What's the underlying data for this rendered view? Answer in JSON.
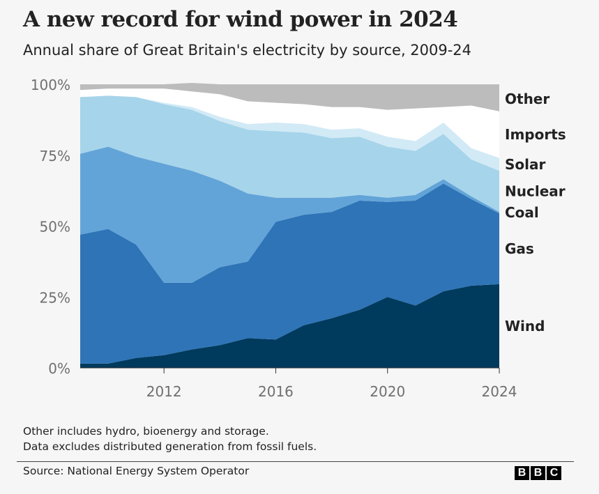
{
  "title": "A new record for wind power in 2024",
  "subtitle": "Annual share of Great Britain's electricity by source, 2009-24",
  "notes": [
    "Other includes hydro, bioenergy and storage.",
    "Data excludes distributed generation from fossil fuels."
  ],
  "source": "Source: National Energy System Operator",
  "logo": [
    "B",
    "B",
    "C"
  ],
  "chart_data": {
    "type": "area",
    "stacked": true,
    "x": [
      2009,
      2010,
      2011,
      2012,
      2013,
      2014,
      2015,
      2016,
      2017,
      2018,
      2019,
      2020,
      2021,
      2022,
      2023,
      2024
    ],
    "xticks": [
      2012,
      2016,
      2020,
      2024
    ],
    "xlim": [
      2009,
      2024
    ],
    "ylim": [
      0,
      100
    ],
    "yticks": [
      {
        "value": 0,
        "label": "0%"
      },
      {
        "value": 25,
        "label": "25%"
      },
      {
        "value": 50,
        "label": "50%"
      },
      {
        "value": 75,
        "label": "75%"
      },
      {
        "value": 100,
        "label": "100%"
      }
    ],
    "grid": true,
    "legend": "direct labels at right",
    "series": [
      {
        "name": "Wind",
        "color": "#003a5d",
        "values": [
          1.5,
          1.5,
          3.5,
          4.5,
          6.5,
          8,
          10.5,
          10,
          15,
          17.5,
          20.5,
          25,
          22,
          27,
          29,
          29.5
        ]
      },
      {
        "name": "Gas",
        "color": "#2e74b7",
        "values": [
          45.5,
          47.5,
          40,
          25.5,
          23.5,
          27.5,
          27,
          41.5,
          39,
          37.5,
          38.5,
          33.5,
          37,
          38,
          30.5,
          25
        ]
      },
      {
        "name": "Coal",
        "color": "#62a4d8",
        "values": [
          28.5,
          29,
          31,
          42,
          39.5,
          30.5,
          24,
          8.5,
          6,
          5,
          2,
          1.5,
          2,
          1.5,
          1,
          0.5
        ]
      },
      {
        "name": "Nuclear",
        "color": "#a6d4ea",
        "values": [
          20,
          18,
          21,
          21,
          21.5,
          21,
          22.5,
          23.5,
          23,
          21,
          20.5,
          18,
          15.5,
          16,
          13,
          14.5
        ]
      },
      {
        "name": "Solar",
        "color": "#d2eaf6",
        "values": [
          0,
          0,
          0,
          0.5,
          1,
          1.5,
          2,
          3,
          3,
          3,
          3,
          3.5,
          3.5,
          4,
          4,
          4.5
        ]
      },
      {
        "name": "Imports",
        "color": "#ffffff",
        "values": [
          2.5,
          2.5,
          3,
          5,
          5.5,
          8,
          8,
          7,
          7,
          8,
          7.5,
          9.5,
          11.5,
          5.5,
          15,
          16.5
        ]
      },
      {
        "name": "Other",
        "color": "#bcbcbc",
        "values": [
          2,
          1.5,
          1.5,
          1.5,
          3,
          3.5,
          6,
          6.5,
          7,
          8,
          8,
          9,
          8.5,
          8,
          7.5,
          9.5
        ]
      }
    ]
  }
}
